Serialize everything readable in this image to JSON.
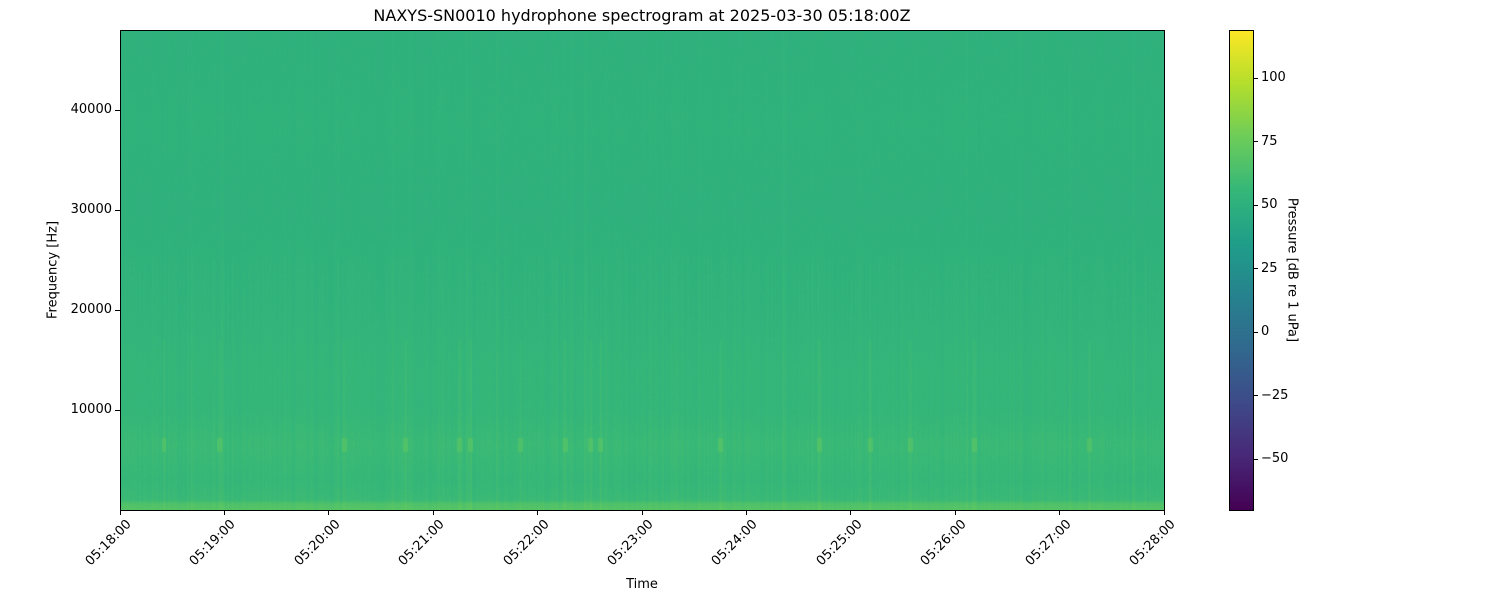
{
  "chart_data": {
    "type": "heatmap",
    "title": "NAXYS-SN0010 hydrophone spectrogram at 2025-03-30 05:18:00Z",
    "xlabel": "Time",
    "ylabel": "Frequency [Hz]",
    "colorbar_label": "Pressure [dB re 1 uPa]",
    "colormap": "viridis",
    "xlim": [
      "05:18:00",
      "05:28:00"
    ],
    "ylim": [
      0,
      48000
    ],
    "clim": [
      -70,
      119
    ],
    "x_ticks": [
      "05:18:00",
      "05:19:00",
      "05:20:00",
      "05:21:00",
      "05:22:00",
      "05:23:00",
      "05:24:00",
      "05:25:00",
      "05:26:00",
      "05:27:00",
      "05:28:00"
    ],
    "y_ticks": [
      10000,
      20000,
      30000,
      40000
    ],
    "colorbar_ticks": [
      -50,
      -25,
      0,
      25,
      50,
      75,
      100
    ],
    "frequency_profile_db": [
      {
        "hz": 0,
        "db": 68
      },
      {
        "hz": 600,
        "db": 66
      },
      {
        "hz": 1000,
        "db": 58
      },
      {
        "hz": 3000,
        "db": 56
      },
      {
        "hz": 6500,
        "db": 58
      },
      {
        "hz": 10000,
        "db": 55
      },
      {
        "hz": 14000,
        "db": 55
      },
      {
        "hz": 20000,
        "db": 53
      },
      {
        "hz": 30000,
        "db": 51
      },
      {
        "hz": 38500,
        "db": 52
      },
      {
        "hz": 48000,
        "db": 51
      }
    ],
    "transient_events_6500hz": [
      "05:18:25",
      "05:18:57",
      "05:20:09",
      "05:20:44",
      "05:21:15",
      "05:21:21",
      "05:21:50",
      "05:22:16",
      "05:22:30",
      "05:22:36",
      "05:23:45",
      "05:24:42",
      "05:25:11",
      "05:25:34",
      "05:26:11",
      "05:27:17"
    ],
    "grid": false
  }
}
